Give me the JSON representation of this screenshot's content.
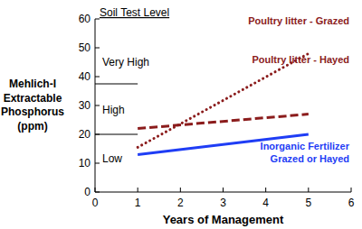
{
  "chart_data": {
    "type": "line",
    "x_label": "Years of Management",
    "y_label": "Mehlich-I Extractable Phosphorus (ppm)",
    "x": [
      1,
      5
    ],
    "series": [
      {
        "name": "Poultry litter - Grazed",
        "color": "#8b1c1c",
        "values": [
          15.5,
          48
        ],
        "line_style": "dotted"
      },
      {
        "name": "Poultry litter - Hayed",
        "color": "#8b1c1c",
        "values": [
          22,
          27
        ],
        "line_style": "dashed"
      },
      {
        "name": "Inorganic Fertilizer Grazed or Hayed",
        "color": "#1f3df5",
        "values": [
          13,
          20
        ],
        "line_style": "solid"
      }
    ],
    "xlim": [
      0,
      6
    ],
    "xticks": [
      0,
      1,
      2,
      3,
      4,
      5,
      6
    ],
    "ylim": [
      0,
      60
    ],
    "yticks": [
      0,
      10,
      20,
      30,
      40,
      50,
      60
    ],
    "grid": false,
    "annotations": [
      "Soil Test Level",
      "Very High",
      "High",
      "Low"
    ],
    "reference_lines": [
      {
        "y": 37.5,
        "x": [
          0,
          1
        ]
      },
      {
        "y": 20,
        "x": [
          0,
          1
        ]
      }
    ]
  }
}
